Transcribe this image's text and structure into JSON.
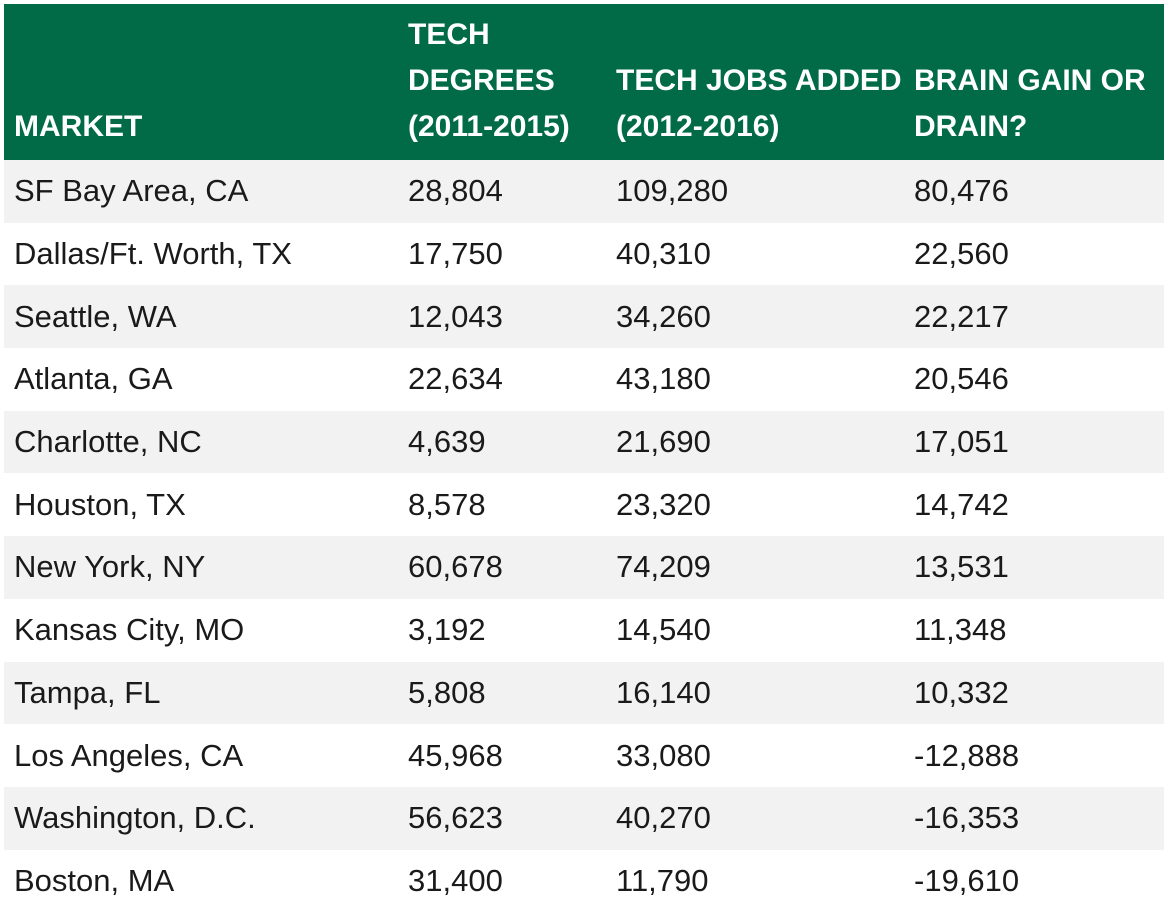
{
  "chart_data": {
    "type": "table",
    "columns": [
      "MARKET",
      "TECH DEGREES (2011-2015)",
      "TECH JOBS ADDED (2012-2016)",
      "BRAIN GAIN OR DRAIN?"
    ],
    "rows": [
      [
        "SF Bay Area, CA",
        "28,804",
        "109,280",
        "80,476"
      ],
      [
        "Dallas/Ft. Worth, TX",
        "17,750",
        "40,310",
        "22,560"
      ],
      [
        "Seattle, WA",
        "12,043",
        "34,260",
        "22,217"
      ],
      [
        "Atlanta, GA",
        "22,634",
        "43,180",
        "20,546"
      ],
      [
        "Charlotte, NC",
        "4,639",
        "21,690",
        "17,051"
      ],
      [
        "Houston, TX",
        "8,578",
        "23,320",
        "14,742"
      ],
      [
        "New York, NY",
        "60,678",
        "74,209",
        "13,531"
      ],
      [
        "Kansas City, MO",
        "3,192",
        "14,540",
        "11,348"
      ],
      [
        "Tampa, FL",
        "5,808",
        "16,140",
        "10,332"
      ],
      [
        "Los Angeles, CA",
        "45,968",
        "33,080",
        "-12,888"
      ],
      [
        "Washington, D.C.",
        "56,623",
        "40,270",
        "-16,353"
      ],
      [
        "Boston, MA",
        "31,400",
        "11,790",
        "-19,610"
      ]
    ],
    "header_color": "#006b46",
    "header_text_color": "#ffffff",
    "stripe_color": "#f2f2f2"
  }
}
